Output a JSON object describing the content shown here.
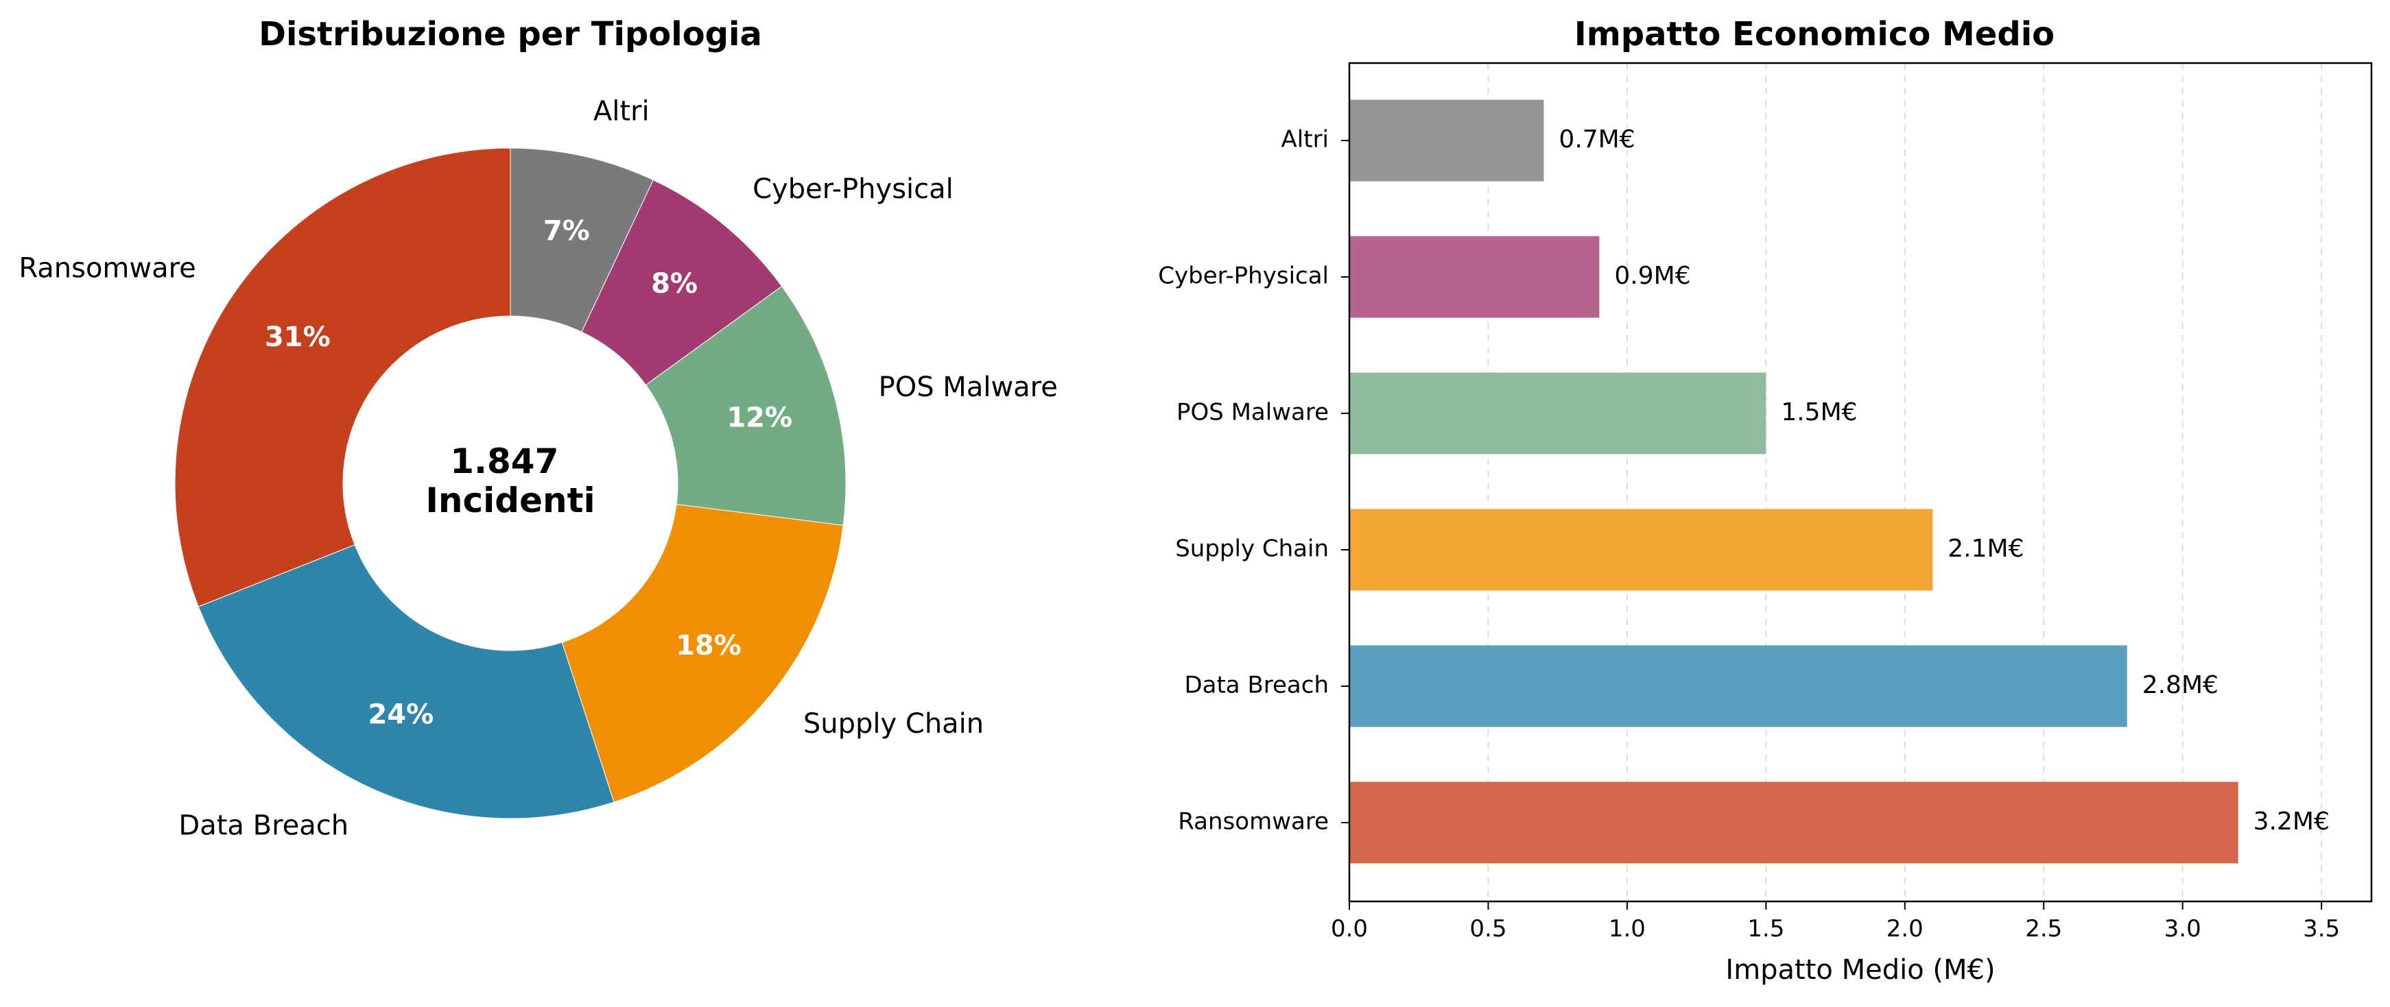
{
  "chart_data": [
    {
      "type": "pie",
      "title": "Distribuzione per Tipologia",
      "center_label": [
        "1.847",
        "Incidenti"
      ],
      "categories": [
        "Ransomware",
        "Data Breach",
        "Supply Chain",
        "POS Malware",
        "Cyber-Physical",
        "Altri"
      ],
      "values": [
        31,
        24,
        18,
        12,
        8,
        7
      ],
      "value_labels": [
        "31%",
        "24%",
        "18%",
        "12%",
        "8%",
        "7%"
      ],
      "colors": [
        "#c7401e",
        "#2e86ab",
        "#f18f01",
        "#73ab84",
        "#a23b72",
        "#7a7a7a"
      ],
      "start_angle_deg": 90,
      "direction": "counterclockwise"
    },
    {
      "type": "bar",
      "orientation": "horizontal",
      "title": "Impatto Economico Medio",
      "xlabel": "Impatto Medio (M€)",
      "ylabel": "",
      "categories": [
        "Ransomware",
        "Data Breach",
        "Supply Chain",
        "POS Malware",
        "Cyber-Physical",
        "Altri"
      ],
      "values": [
        3.2,
        2.8,
        2.1,
        1.5,
        0.9,
        0.7
      ],
      "value_labels": [
        "3.2M€",
        "2.8M€",
        "2.1M€",
        "1.5M€",
        "0.9M€",
        "0.7M€"
      ],
      "colors": [
        "#d4664a",
        "#5a9fbe",
        "#f2a534",
        "#8fbc9c",
        "#b4648e",
        "#959595"
      ],
      "xlim": [
        0,
        3.68
      ],
      "xticks": [
        0.0,
        0.5,
        1.0,
        1.5,
        2.0,
        2.5,
        3.0,
        3.5
      ],
      "xtick_labels": [
        "0.0",
        "0.5",
        "1.0",
        "1.5",
        "2.0",
        "2.5",
        "3.0",
        "3.5"
      ],
      "grid": "x-dashed"
    }
  ]
}
